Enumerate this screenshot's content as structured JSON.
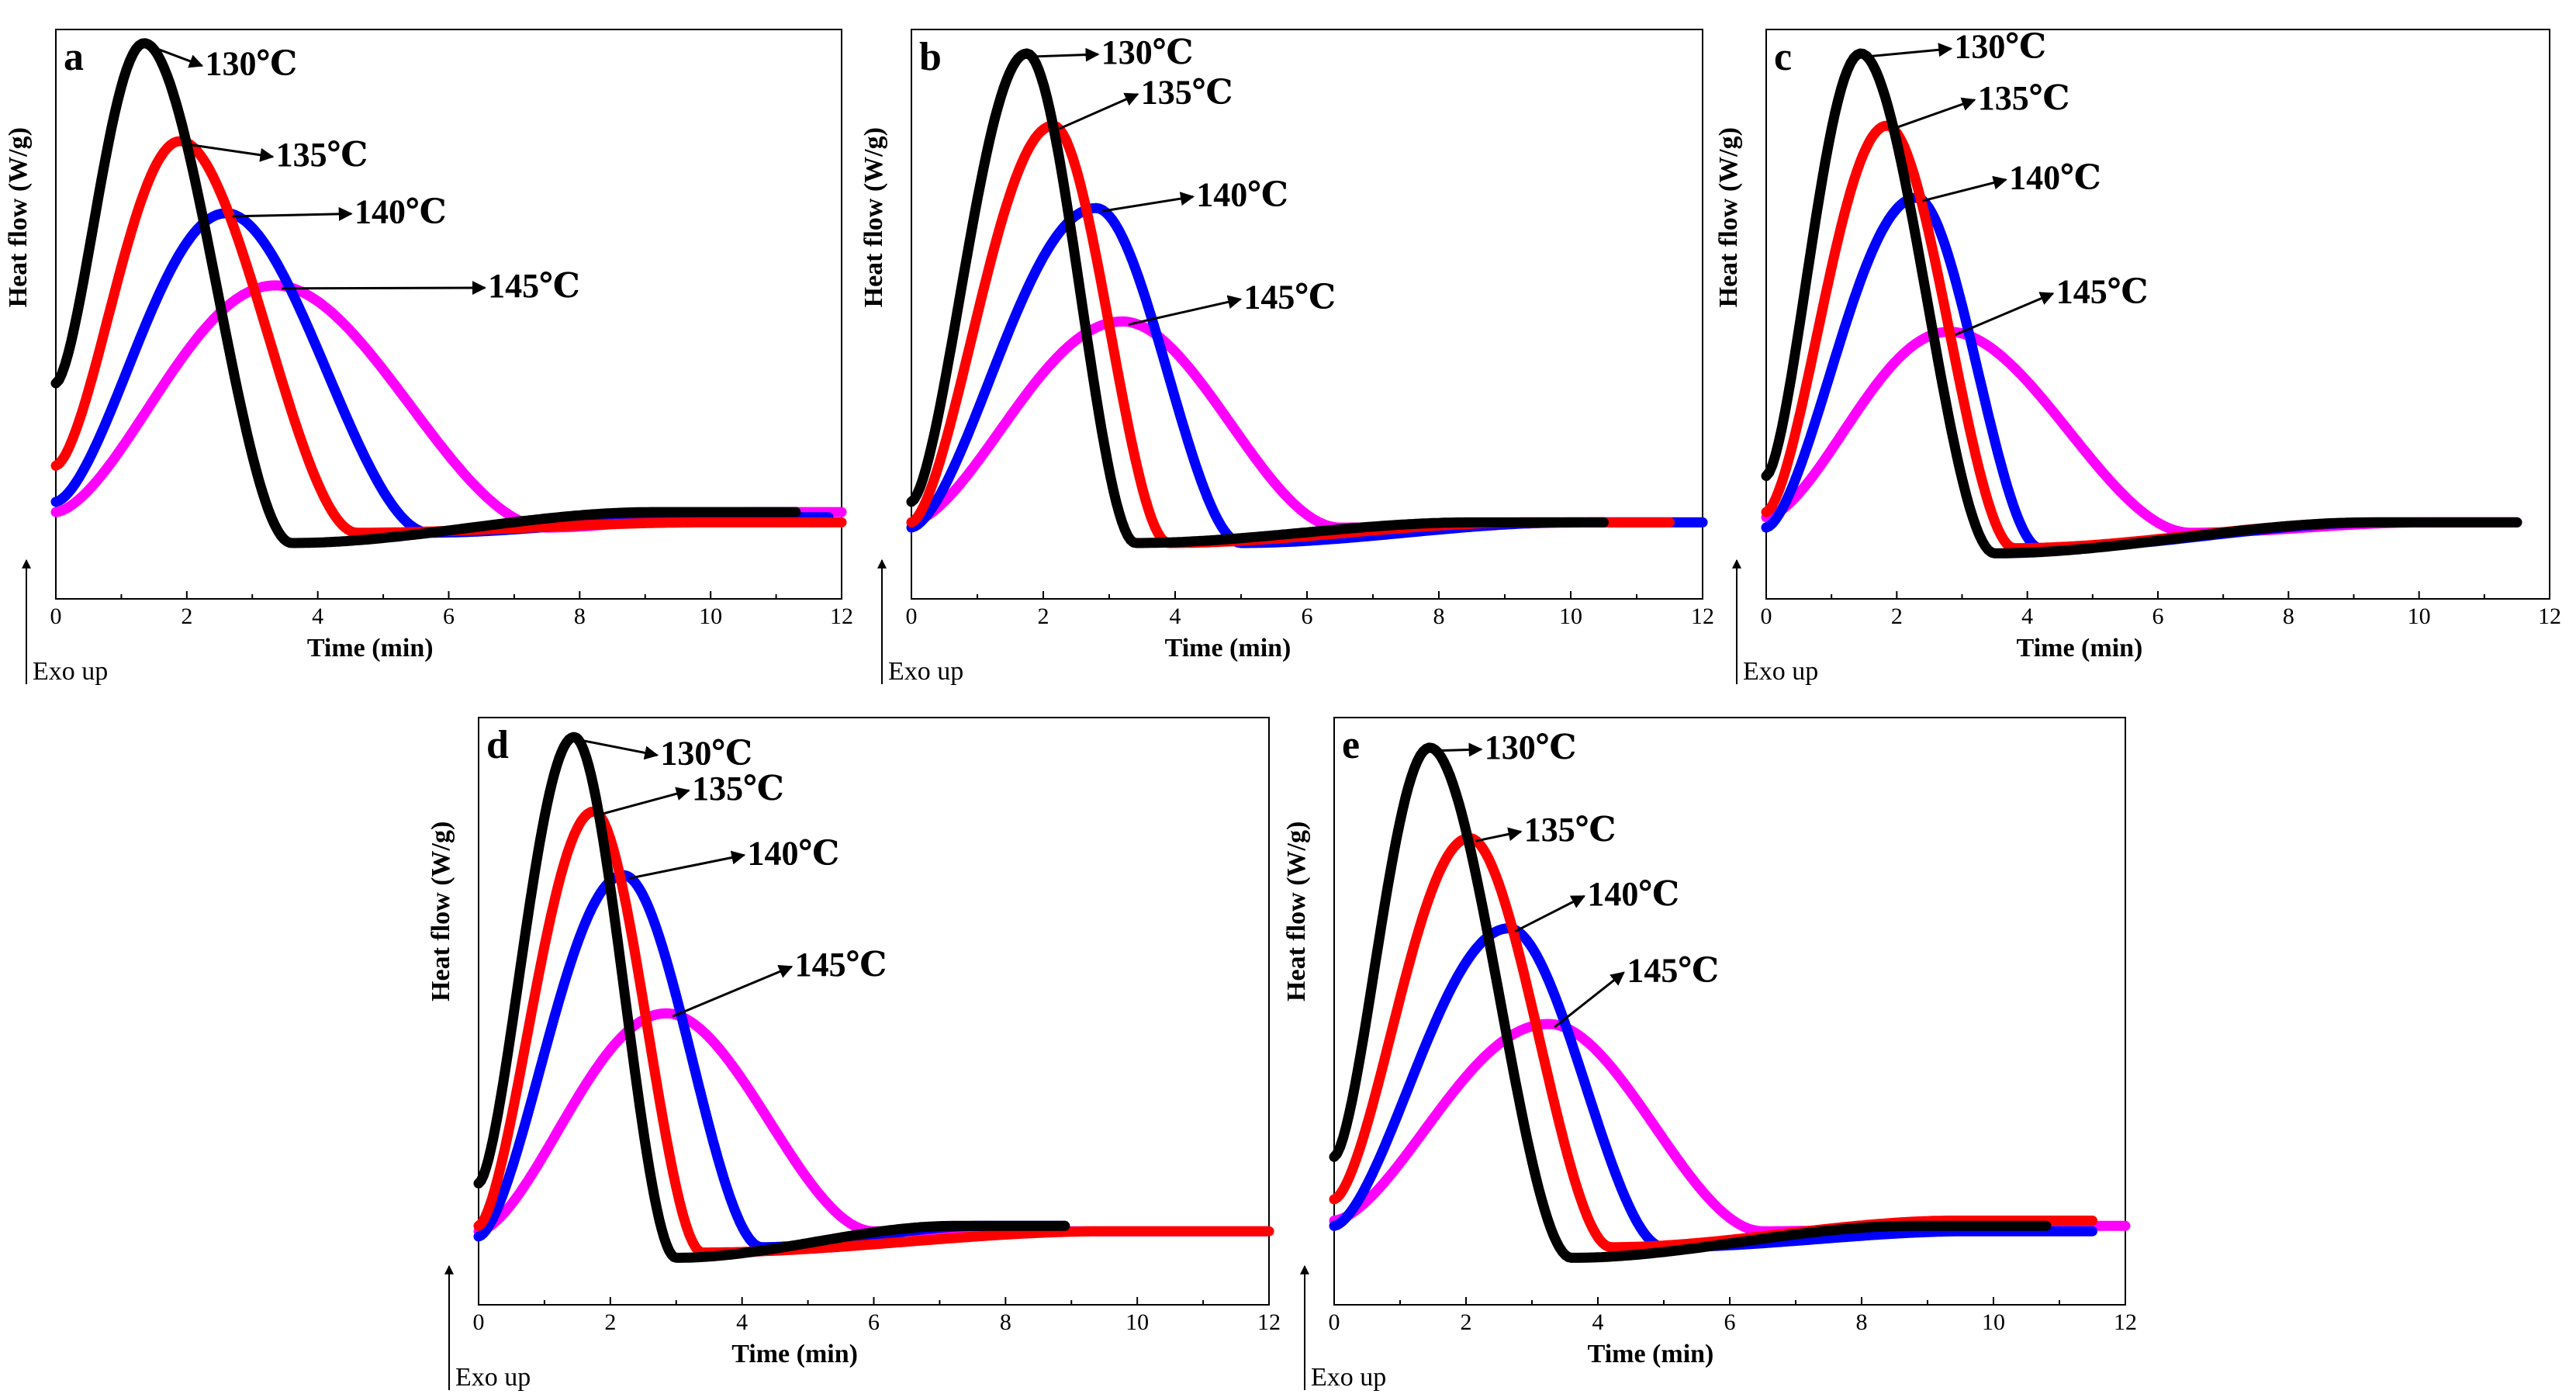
{
  "figure_title": "",
  "chart_data": [
    {
      "panel": "a",
      "type": "line",
      "xlabel": "Time (min)",
      "ylabel": "Heat flow (W/g)",
      "exo_label": "Exo  up",
      "xlim": [
        0,
        12
      ],
      "ylim": [
        0,
        1
      ],
      "x_ticks": [
        "0",
        "2",
        "4",
        "6",
        "8",
        "10",
        "12"
      ],
      "series": [
        {
          "name": "130℃",
          "label": "130℃",
          "color": "#000000",
          "start": 0.33,
          "peak_x": 1.35,
          "peak_y": 0.99,
          "min_x": 3.6,
          "min_y": 0.02,
          "end_x": 11.3,
          "end_y": 0.08
        },
        {
          "name": "135℃",
          "label": "135℃",
          "color": "#ff0000",
          "start": 0.17,
          "peak_x": 1.9,
          "peak_y": 0.8,
          "min_x": 4.6,
          "min_y": 0.04,
          "end_x": 12.0,
          "end_y": 0.06
        },
        {
          "name": "140℃",
          "label": "140℃",
          "color": "#0000ff",
          "start": 0.1,
          "peak_x": 2.6,
          "peak_y": 0.66,
          "min_x": 5.7,
          "min_y": 0.04,
          "end_x": 11.8,
          "end_y": 0.07
        },
        {
          "name": "145℃",
          "label": "145℃",
          "color": "#ff00ff",
          "start": 0.08,
          "peak_x": 3.35,
          "peak_y": 0.52,
          "min_x": 7.5,
          "min_y": 0.05,
          "end_x": 12.0,
          "end_y": 0.08
        }
      ]
    },
    {
      "panel": "b",
      "type": "line",
      "xlabel": "Time (min)",
      "ylabel": "Heat flow (W/g)",
      "exo_label": "Exo  up",
      "xlim": [
        0,
        12
      ],
      "ylim": [
        0,
        1
      ],
      "x_ticks": [
        "0",
        "2",
        "4",
        "6",
        "8",
        "10",
        "12"
      ],
      "series": [
        {
          "name": "130℃",
          "label": "130℃",
          "color": "#000000",
          "start": 0.1,
          "peak_x": 1.75,
          "peak_y": 0.97,
          "min_x": 3.4,
          "min_y": 0.02,
          "end_x": 10.5,
          "end_y": 0.06
        },
        {
          "name": "135℃",
          "label": "135℃",
          "color": "#ff0000",
          "start": 0.06,
          "peak_x": 2.15,
          "peak_y": 0.83,
          "min_x": 3.9,
          "min_y": 0.02,
          "end_x": 11.5,
          "end_y": 0.06
        },
        {
          "name": "140℃",
          "label": "140℃",
          "color": "#0000ff",
          "start": 0.05,
          "peak_x": 2.8,
          "peak_y": 0.67,
          "min_x": 5.0,
          "min_y": 0.02,
          "end_x": 12.0,
          "end_y": 0.06
        },
        {
          "name": "145℃",
          "label": "145℃",
          "color": "#ff00ff",
          "start": 0.06,
          "peak_x": 3.2,
          "peak_y": 0.45,
          "min_x": 6.5,
          "min_y": 0.05,
          "end_x": 12.0,
          "end_y": 0.06
        }
      ]
    },
    {
      "panel": "c",
      "type": "line",
      "xlabel": "Time (min)",
      "ylabel": "Heat flow (W/g)",
      "exo_label": "Exo  up",
      "xlim": [
        0,
        12
      ],
      "ylim": [
        0,
        1
      ],
      "x_ticks": [
        "0",
        "2",
        "4",
        "6",
        "8",
        "10",
        "12"
      ],
      "series": [
        {
          "name": "130℃",
          "label": "130℃",
          "color": "#000000",
          "start": 0.15,
          "peak_x": 1.45,
          "peak_y": 0.97,
          "min_x": 3.5,
          "min_y": 0.0,
          "end_x": 11.5,
          "end_y": 0.06
        },
        {
          "name": "135℃",
          "label": "135℃",
          "color": "#ff0000",
          "start": 0.08,
          "peak_x": 1.85,
          "peak_y": 0.83,
          "min_x": 3.8,
          "min_y": 0.01,
          "end_x": 11.5,
          "end_y": 0.06
        },
        {
          "name": "140℃",
          "label": "140℃",
          "color": "#0000ff",
          "start": 0.05,
          "peak_x": 2.3,
          "peak_y": 0.69,
          "min_x": 4.2,
          "min_y": 0.01,
          "end_x": 11.5,
          "end_y": 0.06
        },
        {
          "name": "145℃",
          "label": "145℃",
          "color": "#ff00ff",
          "start": 0.07,
          "peak_x": 2.8,
          "peak_y": 0.43,
          "min_x": 6.5,
          "min_y": 0.04,
          "end_x": 11.5,
          "end_y": 0.06
        }
      ]
    },
    {
      "panel": "d",
      "type": "line",
      "xlabel": "Time (min)",
      "ylabel": "Heat flow (W/g)",
      "exo_label": "Exo  up",
      "xlim": [
        0,
        12
      ],
      "ylim": [
        0,
        1
      ],
      "x_ticks": [
        "0",
        "2",
        "4",
        "6",
        "8",
        "10",
        "12"
      ],
      "series": [
        {
          "name": "130℃",
          "label": "130℃",
          "color": "#000000",
          "start": 0.14,
          "peak_x": 1.45,
          "peak_y": 0.98,
          "min_x": 3.0,
          "min_y": 0.0,
          "end_x": 8.9,
          "end_y": 0.06
        },
        {
          "name": "135℃",
          "label": "135℃",
          "color": "#ff0000",
          "start": 0.06,
          "peak_x": 1.75,
          "peak_y": 0.84,
          "min_x": 3.4,
          "min_y": 0.01,
          "end_x": 12.0,
          "end_y": 0.05
        },
        {
          "name": "140℃",
          "label": "140℃",
          "color": "#0000ff",
          "start": 0.04,
          "peak_x": 2.2,
          "peak_y": 0.72,
          "min_x": 4.3,
          "min_y": 0.02,
          "end_x": 8.9,
          "end_y": 0.06
        },
        {
          "name": "145℃",
          "label": "145℃",
          "color": "#ff00ff",
          "start": 0.05,
          "peak_x": 2.85,
          "peak_y": 0.46,
          "min_x": 6.0,
          "min_y": 0.05,
          "end_x": 12.0,
          "end_y": 0.05
        }
      ]
    },
    {
      "panel": "e",
      "type": "line",
      "xlabel": "Time (min)",
      "ylabel": "Heat flow (W/g)",
      "exo_label": "Exo  up",
      "xlim": [
        0,
        12
      ],
      "ylim": [
        0,
        1
      ],
      "x_ticks": [
        "0",
        "2",
        "4",
        "6",
        "8",
        "10",
        "12"
      ],
      "series": [
        {
          "name": "130℃",
          "label": "130℃",
          "color": "#000000",
          "start": 0.19,
          "peak_x": 1.45,
          "peak_y": 0.96,
          "min_x": 3.6,
          "min_y": 0.0,
          "end_x": 10.8,
          "end_y": 0.06
        },
        {
          "name": "135℃",
          "label": "135℃",
          "color": "#ff0000",
          "start": 0.11,
          "peak_x": 2.05,
          "peak_y": 0.79,
          "min_x": 4.2,
          "min_y": 0.02,
          "end_x": 11.5,
          "end_y": 0.07
        },
        {
          "name": "140℃",
          "label": "140℃",
          "color": "#0000ff",
          "start": 0.06,
          "peak_x": 2.65,
          "peak_y": 0.62,
          "min_x": 5.0,
          "min_y": 0.02,
          "end_x": 11.5,
          "end_y": 0.05
        },
        {
          "name": "145℃",
          "label": "145℃",
          "color": "#ff00ff",
          "start": 0.07,
          "peak_x": 3.25,
          "peak_y": 0.44,
          "min_x": 6.5,
          "min_y": 0.05,
          "end_x": 12.0,
          "end_y": 0.06
        }
      ]
    }
  ]
}
